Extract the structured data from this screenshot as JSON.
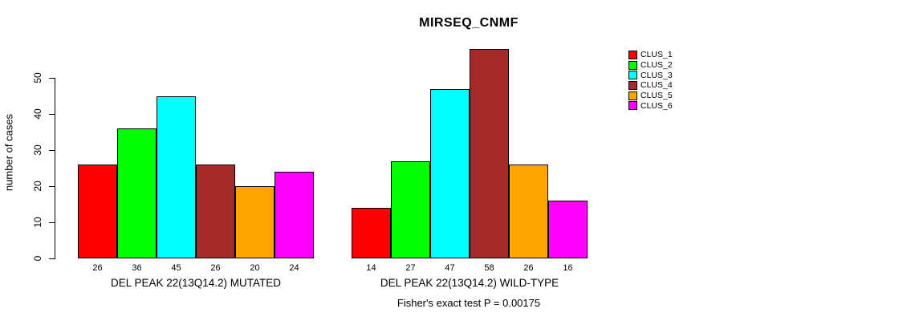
{
  "title": "MIRSEQ_CNMF",
  "chart_data": {
    "type": "bar",
    "title": "MIRSEQ_CNMF",
    "xlabel": "",
    "ylabel": "number of cases",
    "yticks": [
      0,
      10,
      20,
      30,
      40,
      50
    ],
    "ylim": [
      0,
      58
    ],
    "grid": false,
    "legend_position": "top-right",
    "annotation": "Fisher's exact test P = 0.00175",
    "series": [
      {
        "name": "CLUS_1",
        "color": "#FF0000"
      },
      {
        "name": "CLUS_2",
        "color": "#00FF00"
      },
      {
        "name": "CLUS_3",
        "color": "#00FFFF"
      },
      {
        "name": "CLUS_4",
        "color": "#A52A2A"
      },
      {
        "name": "CLUS_5",
        "color": "#FFA500"
      },
      {
        "name": "CLUS_6",
        "color": "#FF00FF"
      }
    ],
    "groups": [
      {
        "label": "DEL PEAK 22(13Q14.2) MUTATED",
        "values": [
          26,
          36,
          45,
          26,
          20,
          24
        ]
      },
      {
        "label": "DEL PEAK 22(13Q14.2) WILD-TYPE",
        "values": [
          14,
          27,
          47,
          58,
          26,
          16
        ]
      }
    ]
  }
}
